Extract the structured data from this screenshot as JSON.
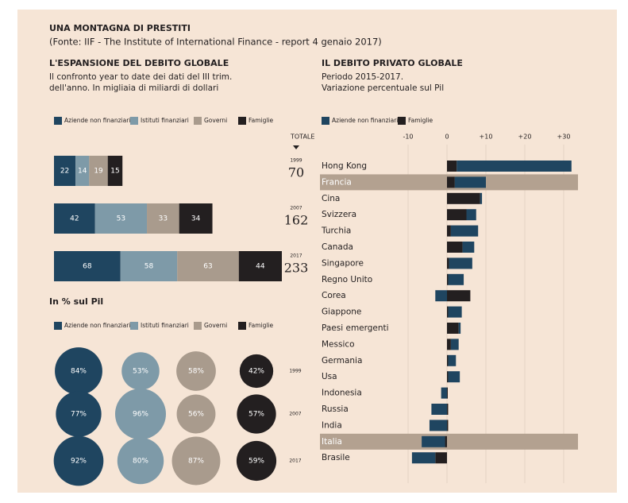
{
  "header": {
    "title": "UNA MONTAGNA DI PRESTITI",
    "source": "(Fonte: IIF - The Institute of International Finance - report 4 genaio 2017)"
  },
  "chart_data": [
    {
      "type": "stacked-bar",
      "orientation": "horizontal",
      "title": "L'ESPANSIONE DEL DEBITO GLOBALE",
      "subtitle": [
        "Il confronto year to date dei dati del III trim.",
        "dell'anno. In migliaia di miliardi di dollari"
      ],
      "categories": [
        "1999",
        "2007",
        "2017"
      ],
      "totals_label": "TOTALE",
      "totals": [
        70,
        162,
        233
      ],
      "series": [
        {
          "name": "Aziende non finanziarie",
          "color": "#1f4560",
          "values": [
            22,
            42,
            68
          ]
        },
        {
          "name": "Istituti finanziari",
          "color": "#7e9aa8",
          "values": [
            14,
            53,
            58
          ]
        },
        {
          "name": "Governi",
          "color": "#a99b8d",
          "values": [
            19,
            33,
            63
          ]
        },
        {
          "name": "Famiglie",
          "color": "#231f20",
          "values": [
            15,
            34,
            44
          ]
        }
      ]
    },
    {
      "type": "bubble-grid",
      "title": "In % sul Pil",
      "categories": [
        "1999",
        "2007",
        "2017"
      ],
      "series": [
        {
          "name": "Aziende non finanziarie",
          "color": "#1f4560",
          "values": [
            84,
            77,
            92
          ],
          "value_labels": [
            "84%",
            "77%",
            "92%"
          ]
        },
        {
          "name": "Istituti finanziari",
          "color": "#7e9aa8",
          "values": [
            53,
            96,
            80
          ],
          "value_labels": [
            "53%",
            "96%",
            "80%"
          ]
        },
        {
          "name": "Governi",
          "color": "#a99b8d",
          "values": [
            58,
            56,
            87
          ],
          "value_labels": [
            "58%",
            "56%",
            "87%"
          ]
        },
        {
          "name": "Famiglie",
          "color": "#231f20",
          "values": [
            42,
            57,
            59
          ],
          "value_labels": [
            "42%",
            "57%",
            "59%"
          ]
        }
      ]
    },
    {
      "type": "diverging-stacked-bar",
      "orientation": "horizontal",
      "title": "IL DEBITO PRIVATO GLOBALE",
      "subtitle": [
        "Periodo 2015-2017.",
        "Variazione percentuale sul Pil"
      ],
      "categories": [
        "Hong Kong",
        "Francia",
        "Cina",
        "Svizzera",
        "Turchia",
        "Canada",
        "Singapore",
        "Regno Unito",
        "Corea",
        "Giappone",
        "Paesi emergenti",
        "Messico",
        "Germania",
        "Usa",
        "Indonesia",
        "Russia",
        "India",
        "Italia",
        "Brasile"
      ],
      "highlight": [
        1,
        17
      ],
      "highlight_color": "#b3a190",
      "xlim": [
        -12,
        34
      ],
      "xticks": [
        -10,
        0,
        {
          "value": 10,
          "label": "+10"
        },
        {
          "value": 20,
          "label": "+20"
        },
        {
          "value": 30,
          "label": "+30"
        }
      ],
      "grid": true,
      "series": [
        {
          "name": "Aziende non finanziarie",
          "color": "#1f4560",
          "values": [
            29.5,
            8,
            0.5,
            2.5,
            7,
            3,
            6,
            4,
            -3,
            3.5,
            0.5,
            2,
            2,
            3,
            -1.5,
            -4,
            -4.5,
            -6,
            -6
          ]
        },
        {
          "name": "Famiglie",
          "color": "#231f20",
          "values": [
            2.5,
            2,
            8.5,
            5,
            1,
            4,
            0.5,
            0.3,
            6,
            0.3,
            3,
            1,
            0.3,
            0.3,
            0.2,
            0.3,
            0.3,
            -0.5,
            -3
          ]
        }
      ]
    }
  ]
}
